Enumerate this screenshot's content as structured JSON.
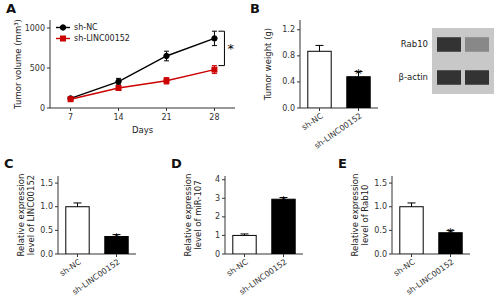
{
  "chart_data": [
    {
      "type": "line",
      "title": "A",
      "xlabel": "Days",
      "ylabel": "Tumor volume (mm³)",
      "x": [
        7,
        14,
        21,
        28
      ],
      "xlim": [
        4,
        31
      ],
      "xticks": [
        7,
        14,
        21,
        28
      ],
      "ylim": [
        0,
        1100
      ],
      "yticks": [
        0,
        500,
        1000
      ],
      "grid": false,
      "legend": "top-left",
      "series": [
        {
          "name": "sh-NC",
          "color": "#000000",
          "marker": "circle",
          "values": [
            120,
            330,
            650,
            870
          ],
          "errors": [
            20,
            40,
            60,
            90
          ]
        },
        {
          "name": "sh-LINC00152",
          "color": "#cc0000",
          "marker": "square",
          "values": [
            110,
            250,
            340,
            480
          ],
          "errors": [
            15,
            30,
            40,
            50
          ]
        }
      ],
      "annotations": [
        {
          "text": "*",
          "x": 28
        }
      ]
    },
    {
      "type": "bar",
      "title": "B",
      "ylabel": "Tumor weight (g)",
      "categories": [
        "sh-NC",
        "sh-LINC00152"
      ],
      "values": [
        0.87,
        0.48
      ],
      "errors": [
        0.09,
        0.08
      ],
      "colors": [
        "#ffffff",
        "#000000"
      ],
      "ylim": [
        0,
        1.35
      ],
      "yticks": [
        {
          "value": 0,
          "label": "0.0"
        },
        0.4,
        0.8,
        1.2
      ],
      "grid": false,
      "annotations": [
        {
          "text": "*",
          "x": "sh-LINC00152",
          "y": 0.58
        }
      ]
    },
    {
      "type": "bar",
      "title": "C",
      "ylabel": "Relative expression\nlevel of LINC00152",
      "categories": [
        "sh-NC",
        "sh-LINC00152"
      ],
      "values": [
        1.0,
        0.37
      ],
      "errors": [
        0.08,
        0.04
      ],
      "colors": [
        "#ffffff",
        "#000000"
      ],
      "ylim": [
        0,
        1.65
      ],
      "yticks": [
        {
          "value": 0,
          "label": "0.0"
        },
        0.5,
        {
          "value": 1,
          "label": "1.0"
        },
        1.5
      ],
      "grid": false,
      "annotations": [
        {
          "text": "*",
          "x": "sh-LINC00152",
          "y": 0.43
        }
      ]
    },
    {
      "type": "bar",
      "title": "D",
      "ylabel": "Relative expression\nlevel of miR-107",
      "categories": [
        "sh-NC",
        "sh-LINC00152"
      ],
      "values": [
        1.0,
        2.95
      ],
      "errors": [
        0.08,
        0.09
      ],
      "colors": [
        "#ffffff",
        "#000000"
      ],
      "ylim": [
        0,
        4.2
      ],
      "yticks": [
        0,
        1,
        2,
        3,
        4
      ],
      "grid": false,
      "annotations": [
        {
          "text": "*",
          "x": "sh-LINC00152",
          "y": 3.06
        }
      ]
    },
    {
      "type": "bar",
      "title": "E",
      "ylabel": "Relative expression\nlevel of Rab10",
      "categories": [
        "sh-NC",
        "sh-LINC00152"
      ],
      "values": [
        1.0,
        0.45
      ],
      "errors": [
        0.08,
        0.05
      ],
      "colors": [
        "#ffffff",
        "#000000"
      ],
      "ylim": [
        0,
        1.65
      ],
      "yticks": [
        {
          "value": 0,
          "label": "0.0"
        },
        0.5,
        {
          "value": 1,
          "label": "1.0"
        },
        1.5
      ],
      "grid": false,
      "annotations": [
        {
          "text": "*",
          "x": "sh-LINC00152",
          "y": 0.52
        }
      ]
    },
    {
      "type": "blot",
      "categories": [
        "Rab10",
        "β-actin"
      ],
      "colors": [
        [
          "#333333",
          "#888888"
        ],
        [
          "#333333",
          "#333333"
        ]
      ],
      "color": "#c8c8c8"
    }
  ]
}
